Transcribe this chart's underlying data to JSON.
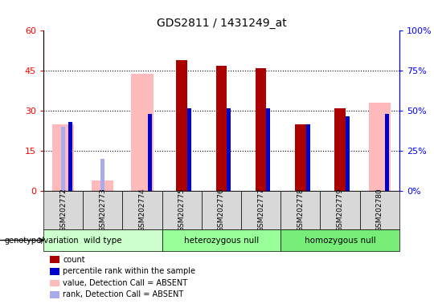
{
  "title": "GDS2811 / 1431249_at",
  "samples": [
    "GSM202772",
    "GSM202773",
    "GSM202774",
    "GSM202775",
    "GSM202776",
    "GSM202777",
    "GSM202778",
    "GSM202779",
    "GSM202780"
  ],
  "count": [
    0,
    0,
    0,
    49,
    47,
    46,
    25,
    31,
    0
  ],
  "percentile_rank": [
    26,
    0,
    29,
    31,
    31,
    31,
    25,
    28,
    29
  ],
  "value_absent": [
    25,
    4,
    44,
    0,
    0,
    0,
    0,
    0,
    33
  ],
  "rank_absent": [
    24,
    12,
    0,
    0,
    0,
    0,
    0,
    0,
    0
  ],
  "groups": [
    {
      "label": "wild type",
      "start": 0,
      "end": 2,
      "color": "#ccffcc"
    },
    {
      "label": "heterozygous null",
      "start": 3,
      "end": 5,
      "color": "#99ff99"
    },
    {
      "label": "homozygous null",
      "start": 6,
      "end": 8,
      "color": "#66ee66"
    }
  ],
  "ylim_left": [
    0,
    60
  ],
  "ylim_right": [
    0,
    100
  ],
  "yticks_left": [
    0,
    15,
    30,
    45,
    60
  ],
  "ytick_labels_left": [
    "0",
    "15",
    "30",
    "45",
    "60"
  ],
  "yticks_right": [
    0,
    25,
    50,
    75,
    100
  ],
  "ytick_labels_right": [
    "0%",
    "25%",
    "50%",
    "75%",
    "100%"
  ],
  "count_color": "#aa0000",
  "rank_color": "#0000cc",
  "value_absent_color": "#ffbbbb",
  "rank_absent_color": "#aaaaee",
  "legend_items": [
    {
      "label": "count",
      "color": "#aa0000"
    },
    {
      "label": "percentile rank within the sample",
      "color": "#0000cc"
    },
    {
      "label": "value, Detection Call = ABSENT",
      "color": "#ffbbbb"
    },
    {
      "label": "rank, Detection Call = ABSENT",
      "color": "#aaaaee"
    }
  ],
  "genotype_label": "genotype/variation"
}
